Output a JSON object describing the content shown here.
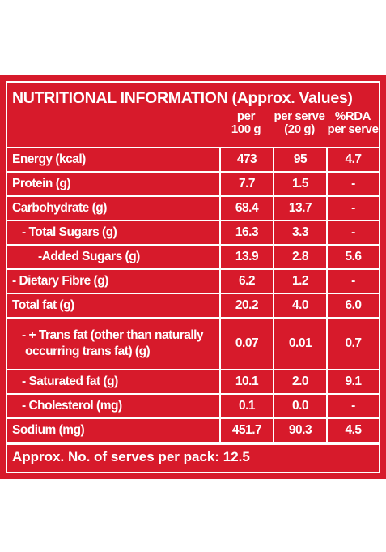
{
  "title": "NUTRITIONAL INFORMATION (Approx. Values)",
  "columns": {
    "per100": [
      "per",
      "100 g"
    ],
    "perServe": [
      "per serve",
      "(20 g)"
    ],
    "rda": [
      "%RDA",
      "per serve"
    ]
  },
  "rows": [
    {
      "label": "Energy (kcal)",
      "per100": "473",
      "serve": "95",
      "rda": "4.7"
    },
    {
      "label": "Protein (g)",
      "per100": "7.7",
      "serve": "1.5",
      "rda": "-"
    },
    {
      "label": "Carbohydrate (g)",
      "per100": "68.4",
      "serve": "13.7",
      "rda": "-"
    },
    {
      "label": "- Total Sugars (g)",
      "per100": "16.3",
      "serve": "3.3",
      "rda": "-"
    },
    {
      "label": "-Added Sugars (g)",
      "per100": "13.9",
      "serve": "2.8",
      "rda": "5.6"
    },
    {
      "label": "- Dietary Fibre (g)",
      "per100": "6.2",
      "serve": "1.2",
      "rda": "-"
    },
    {
      "label": "Total fat (g)",
      "per100": "20.2",
      "serve": "4.0",
      "rda": "6.0"
    },
    {
      "label_line1": "- + Trans fat (other than naturally",
      "label_line2": "occurring trans fat) (g)",
      "per100": "0.07",
      "serve": "0.01",
      "rda": "0.7"
    },
    {
      "label": "- Saturated fat (g)",
      "per100": "10.1",
      "serve": "2.0",
      "rda": "9.1"
    },
    {
      "label": "- Cholesterol (mg)",
      "per100": "0.1",
      "serve": "0.0",
      "rda": "-"
    },
    {
      "label": "Sodium (mg)",
      "per100": "451.7",
      "serve": "90.3",
      "rda": "4.5"
    }
  ],
  "footer": "Approx. No. of serves per pack: 12.5",
  "colors": {
    "panel": "#d71a2b",
    "text": "#ffffff"
  }
}
